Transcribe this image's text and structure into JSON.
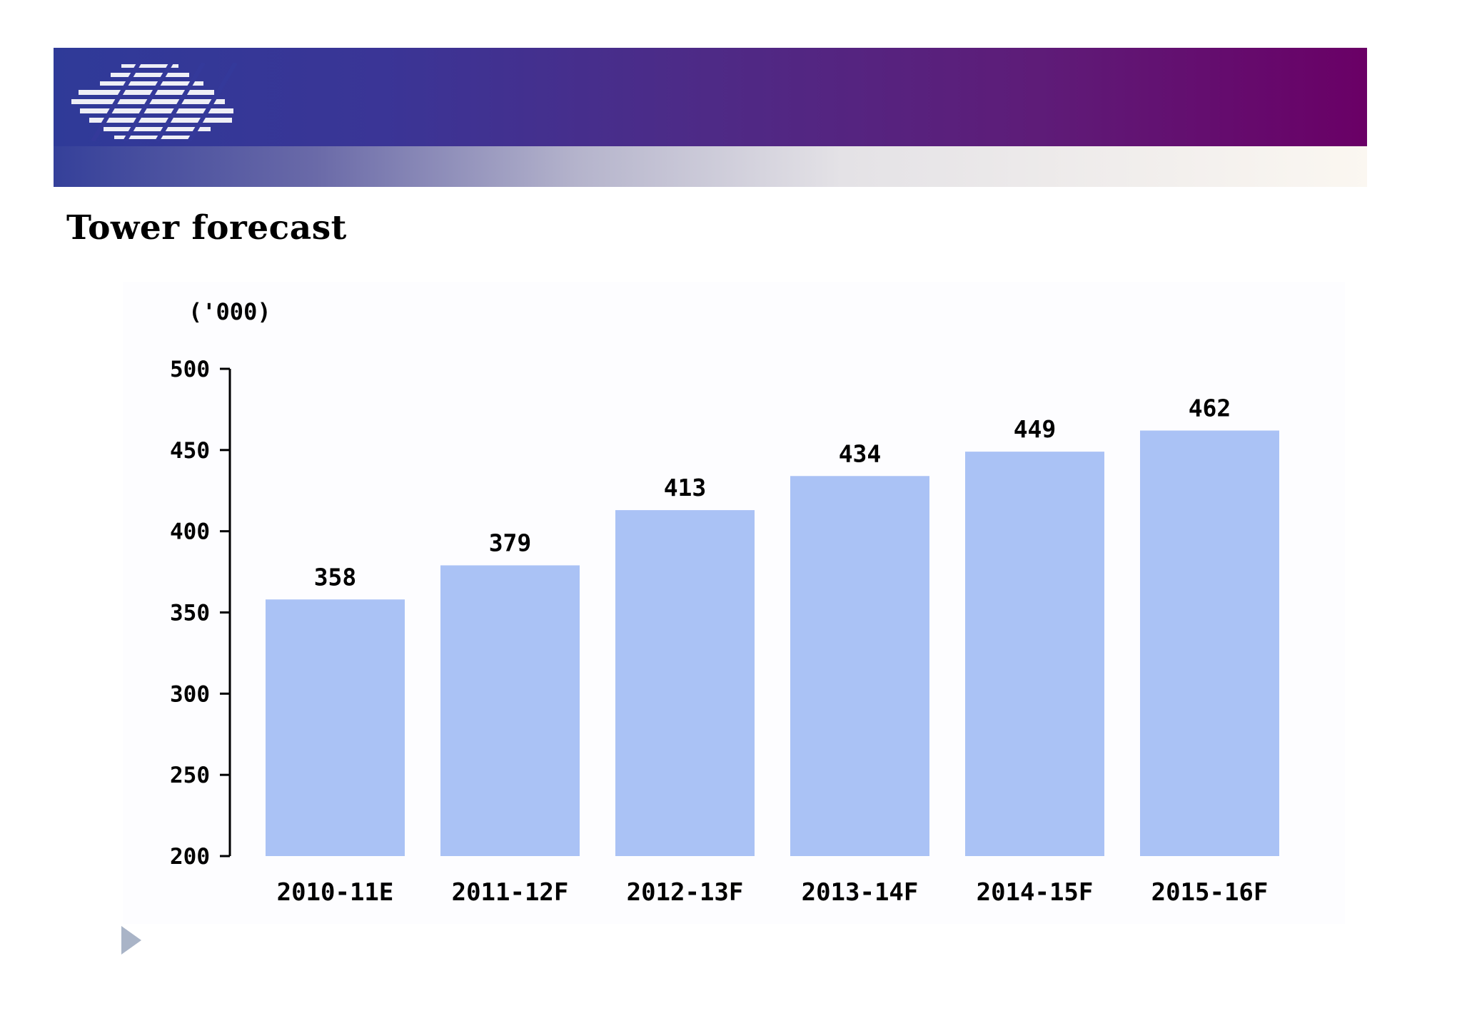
{
  "page": {
    "title": "Tower forecast"
  },
  "colors": {
    "bar": "#aac2f5",
    "axis": "#000000",
    "arrow": "#a9b4c7"
  },
  "icons": {
    "logo": "striped-globe-logo",
    "next": "play-triangle-icon"
  },
  "chart_data": {
    "type": "bar",
    "title": "Tower forecast",
    "unit_label": "('000)",
    "xlabel": "",
    "ylabel": "('000)",
    "categories": [
      "2010-11E",
      "2011-12F",
      "2012-13F",
      "2013-14F",
      "2014-15F",
      "2015-16F"
    ],
    "values": [
      358,
      379,
      413,
      434,
      449,
      462
    ],
    "ylim": [
      200,
      500
    ],
    "yticks": [
      200,
      250,
      300,
      350,
      400,
      450,
      500
    ],
    "grid": false,
    "legend": "none"
  }
}
